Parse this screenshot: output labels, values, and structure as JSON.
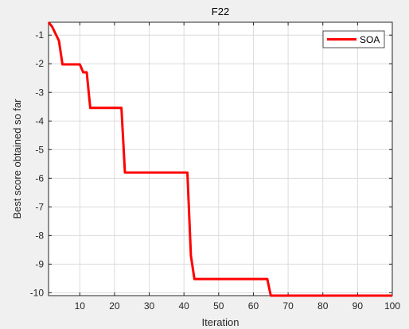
{
  "chart_data": {
    "type": "line",
    "title": "F22",
    "xlabel": "Iteration",
    "ylabel": "Best score obtained so far",
    "xlim": [
      1,
      100
    ],
    "ylim": [
      -10.1,
      -0.55
    ],
    "xticks": [
      10,
      20,
      30,
      40,
      50,
      60,
      70,
      80,
      90,
      100
    ],
    "yticks": [
      -1,
      -2,
      -3,
      -4,
      -5,
      -6,
      -7,
      -8,
      -9,
      -10
    ],
    "grid": true,
    "legend": {
      "position": "top-right",
      "entries": [
        "SOA"
      ]
    },
    "series": [
      {
        "name": "SOA",
        "color": "#ff0000",
        "points": [
          [
            1,
            -0.55
          ],
          [
            2,
            -0.7
          ],
          [
            4,
            -1.2
          ],
          [
            5,
            -2.02
          ],
          [
            10,
            -2.02
          ],
          [
            11,
            -2.3
          ],
          [
            12,
            -2.3
          ],
          [
            13,
            -3.54
          ],
          [
            22,
            -3.54
          ],
          [
            23,
            -5.8
          ],
          [
            41,
            -5.8
          ],
          [
            42,
            -8.7
          ],
          [
            43,
            -9.52
          ],
          [
            64,
            -9.52
          ],
          [
            65,
            -10.1
          ],
          [
            100,
            -10.1
          ]
        ]
      }
    ]
  }
}
